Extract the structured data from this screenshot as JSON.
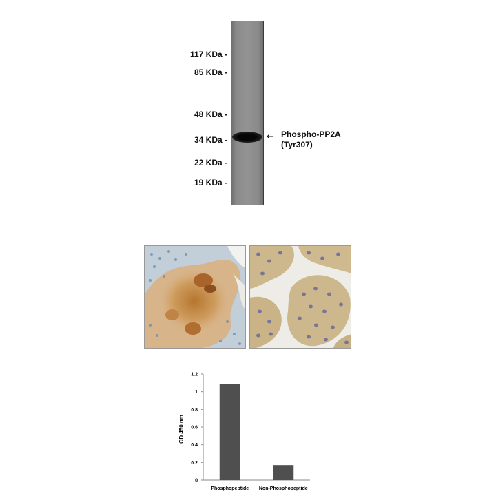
{
  "western_blot": {
    "markers": [
      {
        "label": "117 KDa -",
        "kda": 117
      },
      {
        "label": "85 KDa -",
        "kda": 85
      },
      {
        "label": "48 KDa -",
        "kda": 48
      },
      {
        "label": "34 KDa -",
        "kda": 34
      },
      {
        "label": "22 KDa -",
        "kda": 22
      },
      {
        "label": "19 KDa -",
        "kda": 19
      }
    ],
    "band_label_line1": "Phospho-PP2A",
    "band_label_line2": "(Tyr307)",
    "arrow": "←"
  },
  "ihc": {
    "left_panel_stain": "brown",
    "right_panel_stain": "tan"
  },
  "chart_data": {
    "type": "bar",
    "categories": [
      "Phosphopeptide",
      "Non-Phosphopeptide"
    ],
    "values": [
      1.09,
      0.17
    ],
    "title": "",
    "xlabel": "",
    "ylabel": "OD 450 nm",
    "ylim": [
      0,
      1.2
    ],
    "yticks": [
      "0",
      "0.2",
      "0.4",
      "0.6",
      "0.8",
      "1",
      "1.2"
    ],
    "grid": false,
    "bar_color": "#4f4f4f"
  }
}
